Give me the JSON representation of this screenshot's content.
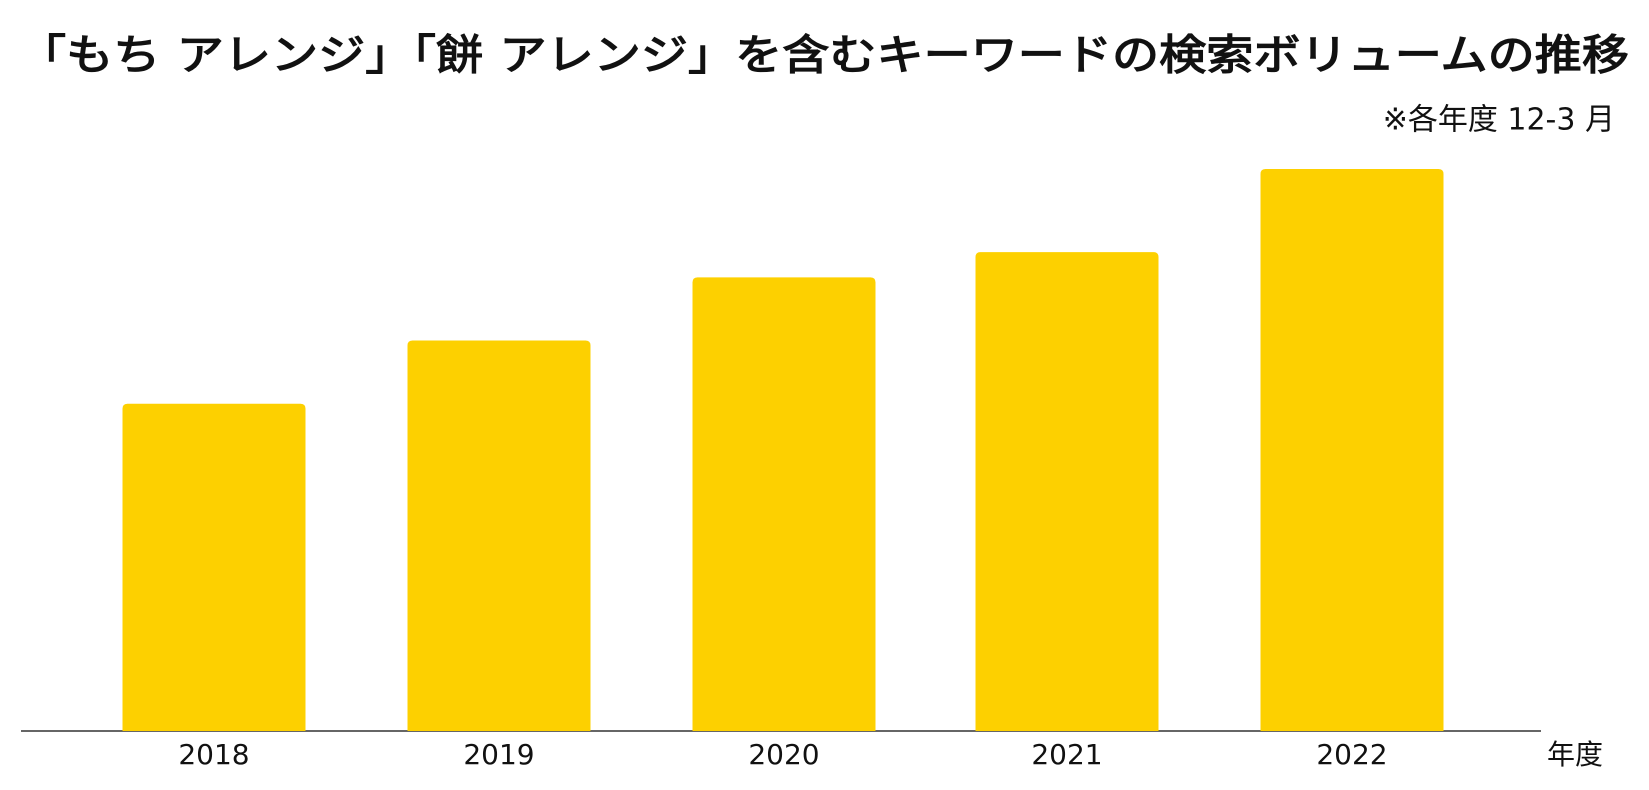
{
  "chart_data": {
    "type": "bar",
    "title": "「もち アレンジ」「餅 アレンジ」を含むキーワードの検索ボリュームの推移",
    "subtitle": "※各年度 12-3 月",
    "x_label": "年度",
    "categories": [
      "2018",
      "2019",
      "2020",
      "2021",
      "2022"
    ],
    "values": [
      311,
      371,
      431,
      455,
      534
    ],
    "color": "#fdd000"
  }
}
